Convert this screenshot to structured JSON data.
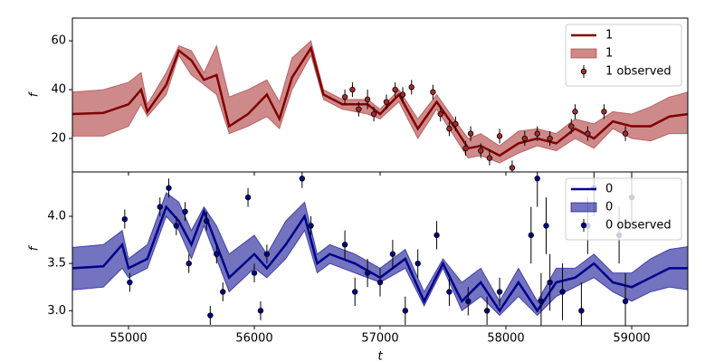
{
  "chart_data": [
    {
      "type": "line",
      "ylabel": "f",
      "legend": "upper right",
      "xlim": [
        54554,
        59446
      ],
      "xticks": [
        55000,
        56000,
        57000,
        58000,
        59000
      ],
      "ylim": [
        6.3,
        69.3
      ],
      "yticks": [
        20,
        40,
        60
      ],
      "x": [
        54550,
        54800,
        55000,
        55100,
        55150,
        55300,
        55400,
        55500,
        55600,
        55700,
        55800,
        55950,
        56100,
        56200,
        56300,
        56450,
        56550,
        56700,
        56900,
        57000,
        57150,
        57300,
        57450,
        57600,
        57700,
        57800,
        57950,
        58100,
        58250,
        58400,
        58550,
        58700,
        58850,
        59000,
        59150,
        59300,
        59450
      ],
      "line": {
        "name": "1",
        "color": "#800000",
        "values": [
          30,
          30.5,
          34,
          40,
          31,
          42,
          56,
          52,
          44,
          46,
          25,
          30,
          38,
          28,
          45,
          57,
          38,
          34,
          34,
          30,
          38,
          24,
          35,
          24,
          16,
          17,
          13,
          18,
          20,
          18,
          24,
          20,
          27,
          25,
          25,
          29,
          30
        ]
      },
      "band": {
        "name": "1",
        "color": "#a52a2a",
        "lower": [
          21,
          21,
          25,
          34,
          29,
          38,
          54,
          46,
          42,
          38,
          22,
          25,
          29,
          24,
          40,
          54,
          36,
          32,
          30,
          28,
          35,
          20,
          32,
          20,
          12,
          13,
          10,
          14,
          17,
          15,
          20,
          16,
          24,
          20,
          19,
          22,
          22
        ],
        "upper": [
          39,
          40,
          43,
          47,
          34,
          47,
          58,
          56,
          47,
          58,
          37,
          40,
          44,
          35,
          53,
          60,
          40,
          36,
          36,
          32,
          40,
          28,
          38,
          27,
          20,
          22,
          17,
          23,
          24,
          22,
          28,
          26,
          31,
          30,
          33,
          37,
          39
        ]
      },
      "observed": {
        "name": "1 observed",
        "color": "#a52a2a",
        "x": [
          56720,
          56780,
          56830,
          56900,
          56950,
          57050,
          57120,
          57180,
          57250,
          57420,
          57480,
          57550,
          57600,
          57680,
          57720,
          57800,
          57870,
          57950,
          58050,
          58150,
          58250,
          58350,
          58520,
          58550,
          58650,
          58780,
          58950
        ],
        "values": [
          37,
          40,
          32,
          36,
          30,
          35,
          40,
          38,
          41,
          39,
          30,
          24,
          26,
          16,
          22,
          15,
          12,
          21,
          8,
          20,
          22,
          20,
          25,
          31,
          22,
          31,
          22
        ],
        "errors": [
          3,
          3,
          3,
          4,
          3,
          3,
          3,
          3,
          3,
          3,
          3,
          3,
          3,
          3,
          3,
          3,
          3,
          3,
          3,
          3,
          3,
          3,
          3,
          3,
          3,
          3,
          3
        ]
      }
    },
    {
      "type": "line",
      "ylabel": "f",
      "xlabel": "t",
      "legend": "upper right",
      "xlim": [
        54554,
        59446
      ],
      "xticks": [
        55000,
        56000,
        57000,
        58000,
        59000
      ],
      "ylim": [
        2.84,
        4.47
      ],
      "yticks": [
        {
          "value": 3,
          "label": "3.0"
        },
        3.5,
        {
          "value": 4,
          "label": "4.0"
        }
      ],
      "x": [
        54550,
        54800,
        54950,
        55000,
        55150,
        55300,
        55400,
        55500,
        55600,
        55700,
        55800,
        56000,
        56100,
        56250,
        56400,
        56500,
        56600,
        56800,
        57000,
        57200,
        57350,
        57500,
        57650,
        57800,
        57950,
        58100,
        58250,
        58400,
        58550,
        58700,
        58850,
        59000,
        59150,
        59300,
        59450
      ],
      "line": {
        "name": "0",
        "color": "#00008b",
        "values": [
          3.45,
          3.47,
          3.7,
          3.45,
          3.55,
          4.1,
          3.95,
          3.7,
          4.05,
          3.7,
          3.35,
          3.6,
          3.45,
          3.7,
          4.0,
          3.5,
          3.6,
          3.5,
          3.35,
          3.55,
          3.1,
          3.5,
          3.1,
          3.3,
          3.0,
          3.3,
          3.0,
          3.3,
          3.35,
          3.5,
          3.3,
          3.25,
          3.35,
          3.45,
          3.45
        ]
      },
      "band": {
        "name": "0",
        "color": "#00008b",
        "lower": [
          3.22,
          3.25,
          3.45,
          3.35,
          3.45,
          4.0,
          3.85,
          3.55,
          3.9,
          3.55,
          3.2,
          3.45,
          3.35,
          3.55,
          3.85,
          3.4,
          3.5,
          3.4,
          3.3,
          3.45,
          3.05,
          3.45,
          3.0,
          3.15,
          2.95,
          3.15,
          2.95,
          3.15,
          3.25,
          3.35,
          3.2,
          3.1,
          3.2,
          3.25,
          3.22
        ],
        "upper": [
          3.67,
          3.7,
          3.85,
          3.55,
          3.7,
          4.25,
          4.15,
          3.85,
          4.1,
          3.9,
          3.6,
          3.8,
          3.6,
          3.95,
          4.15,
          3.6,
          3.7,
          3.6,
          3.45,
          3.65,
          3.2,
          3.55,
          3.3,
          3.45,
          3.1,
          3.45,
          3.1,
          3.45,
          3.45,
          3.6,
          3.4,
          3.4,
          3.55,
          3.65,
          3.68
        ]
      },
      "observed": {
        "name": "0 observed",
        "color": "#00008b",
        "x": [
          54970,
          55010,
          55250,
          55320,
          55380,
          55450,
          55480,
          55620,
          55650,
          55700,
          55750,
          55950,
          56000,
          56050,
          56100,
          56380,
          56450,
          56720,
          56800,
          56900,
          57000,
          57100,
          57200,
          57300,
          57450,
          57550,
          57700,
          57850,
          57950,
          58200,
          58250,
          58280,
          58320,
          58350,
          58450,
          58600,
          58650,
          58700,
          58900,
          58950,
          59000
        ],
        "values": [
          3.97,
          3.3,
          4.1,
          4.3,
          3.9,
          4.05,
          3.5,
          3.95,
          2.95,
          3.6,
          3.2,
          4.2,
          3.4,
          3.0,
          3.6,
          4.4,
          3.9,
          3.7,
          3.2,
          3.4,
          3.3,
          3.6,
          3.0,
          3.5,
          3.8,
          3.2,
          3.1,
          3.0,
          3.2,
          3.8,
          4.4,
          3.1,
          3.9,
          3.3,
          3.2,
          3.0,
          3.9,
          4.3,
          3.8,
          3.1,
          4.2
        ],
        "errors": [
          0.1,
          0.1,
          0.1,
          0.1,
          0.1,
          0.1,
          0.1,
          0.1,
          0.1,
          0.1,
          0.1,
          0.1,
          0.1,
          0.1,
          0.1,
          0.1,
          0.1,
          0.15,
          0.15,
          0.15,
          0.15,
          0.15,
          0.15,
          0.15,
          0.15,
          0.15,
          0.15,
          0.15,
          0.15,
          0.3,
          0.3,
          0.3,
          0.3,
          0.3,
          0.3,
          0.3,
          0.3,
          0.3,
          0.3,
          0.3,
          0.3
        ]
      }
    }
  ]
}
